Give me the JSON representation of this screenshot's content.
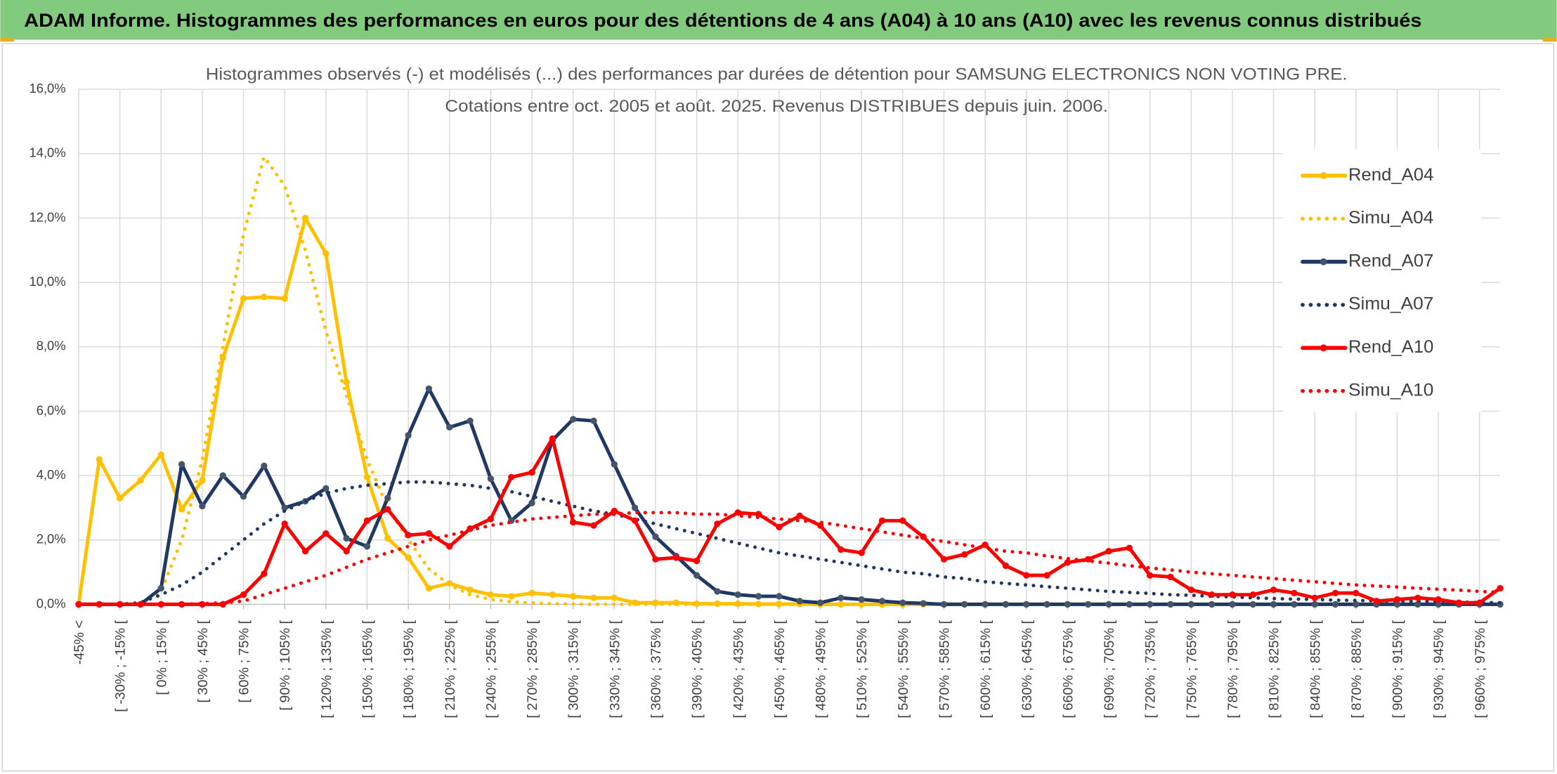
{
  "header": {
    "title": "ADAM Informe. Histogrammes des performances en euros pour des détentions de 4 ans (A04) à 10 ans (A10) avec les revenus connus distribués"
  },
  "chart_data": {
    "type": "line",
    "title": "Histogrammes observés (-) et modélisés (...) des performances par durées de détention pour SAMSUNG ELECTRONICS NON VOTING PRE.",
    "subtitle": "Cotations entre oct. 2005 et août. 2025. Revenus DISTRIBUES depuis juin. 2006.",
    "categories": [
      "-45% <",
      null,
      "[ -30% ; -15% [",
      null,
      "[ 0% ; 15% [",
      null,
      "[ 30% ; 45% [",
      null,
      "[ 60% ; 75% [",
      null,
      "[ 90% ; 105% [",
      null,
      "[ 120% ; 135% [",
      null,
      "[ 150% ; 165% [",
      null,
      "[ 180% ; 195% [",
      null,
      "[ 210% ; 225% [",
      null,
      "[ 240% ; 255% [",
      null,
      "[ 270% ; 285% [",
      null,
      "[ 300% ; 315% [",
      null,
      "[ 330% ; 345% [",
      null,
      "[ 360% ; 375% [",
      null,
      "[ 390% ; 405% [",
      null,
      "[ 420% ; 435% [",
      null,
      "[ 450% ; 465% [",
      null,
      "[ 480% ; 495% [",
      null,
      "[ 510% ; 525% [",
      null,
      "[ 540% ; 555% [",
      null,
      "[ 570% ; 585% [",
      null,
      "[ 600% ; 615% [",
      null,
      "[ 630% ; 645% [",
      null,
      "[ 660% ; 675% [",
      null,
      "[ 690% ; 705% [",
      null,
      "[ 720% ; 735% [",
      null,
      "[ 750% ; 765% [",
      null,
      "[ 780% ; 795% [",
      null,
      "[ 810% ; 825% [",
      null,
      "[ 840% ; 855% [",
      null,
      "[ 870% ; 885% [",
      null,
      "[ 900% ; 915% [",
      null,
      "[ 930% ; 945% [",
      null,
      "[ 960% ; 975% [",
      null
    ],
    "ylim": [
      0,
      16
    ],
    "yticks": [
      {
        "value": 0,
        "label": "0,0%"
      },
      {
        "value": 2,
        "label": "2,0%"
      },
      {
        "value": 4,
        "label": "4,0%"
      },
      {
        "value": 6,
        "label": "6,0%"
      },
      {
        "value": 8,
        "label": "8,0%"
      },
      {
        "value": 10,
        "label": "10,0%"
      },
      {
        "value": 12,
        "label": "12,0%"
      },
      {
        "value": 14,
        "label": "14,0%"
      },
      {
        "value": 16,
        "label": "16,0%"
      }
    ],
    "grid": true,
    "legend": "right",
    "series": [
      {
        "name": "Rend_A04",
        "color": "#FFC000",
        "line_style": "solid",
        "values": [
          0,
          4.5,
          3.3,
          3.85,
          4.65,
          2.95,
          3.85,
          7.65,
          9.5,
          9.55,
          9.5,
          12.0,
          10.9,
          6.9,
          3.95,
          2.05,
          1.45,
          0.5,
          0.65,
          0.45,
          0.3,
          0.25,
          0.35,
          0.3,
          0.25,
          0.2,
          0.2,
          0.05,
          0.05,
          0.05,
          0.02,
          0.02,
          0.02,
          0.01,
          0.01,
          0.01,
          0,
          0,
          0,
          0,
          0,
          0,
          0,
          0,
          0,
          0,
          0,
          0,
          0,
          0,
          0,
          0,
          0,
          0,
          0,
          0,
          0,
          0,
          0,
          0,
          0,
          0,
          0,
          0,
          0,
          0,
          0,
          0,
          0,
          0
        ]
      },
      {
        "name": "Simu_A04",
        "color": "#FFC000",
        "line_style": "dotted",
        "values": [
          0,
          0,
          0,
          0.05,
          0.4,
          2.0,
          4.5,
          8.0,
          11.5,
          13.9,
          13.0,
          11.0,
          8.5,
          6.5,
          4.5,
          3.0,
          2.0,
          1.1,
          0.6,
          0.3,
          0.15,
          0.08,
          0.04,
          0.02,
          0.01,
          0,
          0,
          0,
          0,
          0,
          0,
          0,
          0,
          0,
          0,
          0,
          0,
          0,
          0,
          0,
          0,
          0,
          0,
          0,
          0,
          0,
          0,
          0,
          0,
          0,
          0,
          0,
          0,
          0,
          0,
          0,
          0,
          0,
          0,
          0,
          0,
          0,
          0,
          0,
          0,
          0,
          0,
          0,
          0,
          0
        ]
      },
      {
        "name": "Rend_A07",
        "color": "#1F3864",
        "line_style": "solid",
        "values": [
          0,
          0,
          0,
          0,
          0.5,
          4.35,
          3.05,
          4.0,
          3.35,
          4.3,
          3.0,
          3.2,
          3.6,
          2.05,
          1.8,
          3.3,
          5.25,
          6.7,
          5.5,
          5.7,
          3.9,
          2.6,
          3.15,
          5.1,
          5.75,
          5.7,
          4.35,
          3.0,
          2.1,
          1.5,
          0.9,
          0.4,
          0.3,
          0.25,
          0.25,
          0.1,
          0.05,
          0.2,
          0.15,
          0.1,
          0.05,
          0.03,
          0,
          0,
          0,
          0,
          0,
          0,
          0,
          0,
          0,
          0,
          0,
          0,
          0,
          0,
          0,
          0,
          0,
          0,
          0,
          0,
          0,
          0,
          0,
          0,
          0,
          0,
          0,
          0
        ]
      },
      {
        "name": "Simu_A07",
        "color": "#1F3864",
        "line_style": "dotted",
        "values": [
          0,
          0,
          0,
          0.05,
          0.3,
          0.6,
          1.0,
          1.5,
          2.0,
          2.5,
          2.9,
          3.2,
          3.45,
          3.6,
          3.7,
          3.75,
          3.8,
          3.8,
          3.75,
          3.7,
          3.6,
          3.5,
          3.35,
          3.2,
          3.05,
          2.9,
          2.8,
          2.65,
          2.5,
          2.35,
          2.2,
          2.05,
          1.9,
          1.75,
          1.6,
          1.5,
          1.4,
          1.3,
          1.2,
          1.1,
          1.0,
          0.95,
          0.85,
          0.8,
          0.7,
          0.65,
          0.6,
          0.55,
          0.5,
          0.45,
          0.4,
          0.37,
          0.34,
          0.3,
          0.28,
          0.25,
          0.23,
          0.2,
          0.18,
          0.16,
          0.15,
          0.13,
          0.12,
          0.11,
          0.1,
          0.09,
          0.08,
          0.07,
          0.06,
          0.05
        ]
      },
      {
        "name": "Rend_A10",
        "color": "#FF0000",
        "line_style": "solid",
        "values": [
          0,
          0,
          0,
          0,
          0,
          0,
          0,
          0,
          0.3,
          0.95,
          2.5,
          1.65,
          2.2,
          1.65,
          2.6,
          2.95,
          2.15,
          2.2,
          1.8,
          2.35,
          2.65,
          3.95,
          4.1,
          5.15,
          2.55,
          2.45,
          2.9,
          2.6,
          1.4,
          1.45,
          1.35,
          2.5,
          2.85,
          2.8,
          2.4,
          2.75,
          2.45,
          1.7,
          1.6,
          2.6,
          2.6,
          2.1,
          1.4,
          1.55,
          1.85,
          1.2,
          0.9,
          0.9,
          1.3,
          1.4,
          1.65,
          1.75,
          0.9,
          0.85,
          0.45,
          0.3,
          0.3,
          0.3,
          0.45,
          0.35,
          0.2,
          0.35,
          0.35,
          0.1,
          0.15,
          0.2,
          0.15,
          0.05,
          0.05,
          0.5
        ]
      },
      {
        "name": "Simu_A10",
        "color": "#FF0000",
        "line_style": "dotted",
        "values": [
          0,
          0,
          0,
          0,
          0,
          0,
          0.02,
          0.05,
          0.1,
          0.3,
          0.5,
          0.7,
          0.9,
          1.15,
          1.4,
          1.6,
          1.8,
          2.0,
          2.15,
          2.3,
          2.45,
          2.55,
          2.65,
          2.7,
          2.75,
          2.8,
          2.8,
          2.85,
          2.85,
          2.85,
          2.8,
          2.8,
          2.75,
          2.7,
          2.65,
          2.6,
          2.55,
          2.45,
          2.35,
          2.25,
          2.15,
          2.05,
          1.95,
          1.85,
          1.75,
          1.65,
          1.6,
          1.5,
          1.42,
          1.35,
          1.28,
          1.2,
          1.13,
          1.07,
          1.0,
          0.95,
          0.9,
          0.85,
          0.8,
          0.75,
          0.7,
          0.65,
          0.6,
          0.57,
          0.54,
          0.5,
          0.47,
          0.44,
          0.4,
          0.37
        ]
      }
    ]
  }
}
